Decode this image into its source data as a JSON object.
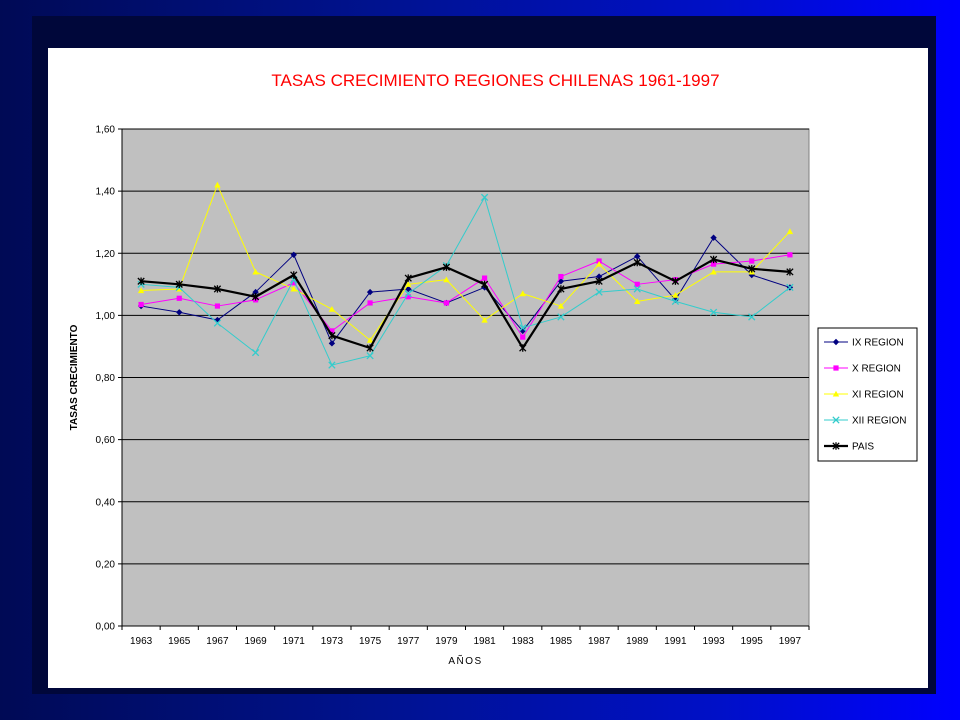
{
  "chart_data": {
    "type": "line",
    "title": "TASAS CRECIMIENTO REGIONES CHILENAS 1961-1997",
    "xlabel": "AÑOS",
    "ylabel": "TASAS CRECIMIENTO",
    "ylim": [
      0,
      1.6
    ],
    "y_ticks": [
      "0,00",
      "0,20",
      "0,40",
      "0,60",
      "0,80",
      "1,00",
      "1,20",
      "1,40",
      "1,60"
    ],
    "categories": [
      "1963",
      "1965",
      "1967",
      "1969",
      "1971",
      "1973",
      "1975",
      "1977",
      "1979",
      "1981",
      "1983",
      "1985",
      "1987",
      "1989",
      "1991",
      "1993",
      "1995",
      "1997"
    ],
    "grid": true,
    "legend_position": "right",
    "plot_background": "#c0c0c0",
    "title_color": "#ff0000",
    "series": [
      {
        "name": "IX REGION",
        "color": "#000080",
        "marker": "diamond",
        "values": [
          1.03,
          1.01,
          0.985,
          1.075,
          1.195,
          0.91,
          1.075,
          1.085,
          1.04,
          1.09,
          0.95,
          1.11,
          1.125,
          1.19,
          1.05,
          1.25,
          1.13,
          1.09
        ]
      },
      {
        "name": "X REGION",
        "color": "#ff00ff",
        "marker": "square",
        "values": [
          1.035,
          1.055,
          1.03,
          1.05,
          1.105,
          0.95,
          1.04,
          1.06,
          1.04,
          1.12,
          0.93,
          1.125,
          1.175,
          1.1,
          1.115,
          1.165,
          1.175,
          1.195
        ]
      },
      {
        "name": "XI REGION",
        "color": "#ffff00",
        "marker": "triangle",
        "values": [
          1.08,
          1.085,
          1.42,
          1.14,
          1.085,
          1.02,
          0.92,
          1.1,
          1.115,
          0.985,
          1.07,
          1.03,
          1.165,
          1.045,
          1.065,
          1.14,
          1.14,
          1.27
        ]
      },
      {
        "name": "XII REGION",
        "color": "#33cccc",
        "marker": "x",
        "values": [
          1.1,
          1.09,
          0.975,
          0.88,
          1.115,
          0.84,
          0.87,
          1.07,
          1.16,
          1.38,
          0.96,
          0.995,
          1.075,
          1.085,
          1.045,
          1.01,
          0.995,
          1.09
        ]
      },
      {
        "name": "PAIS",
        "color": "#000000",
        "marker": "star",
        "values": [
          1.11,
          1.1,
          1.085,
          1.06,
          1.13,
          0.935,
          0.895,
          1.12,
          1.155,
          1.1,
          0.895,
          1.085,
          1.11,
          1.17,
          1.11,
          1.18,
          1.15,
          1.14
        ]
      }
    ]
  }
}
